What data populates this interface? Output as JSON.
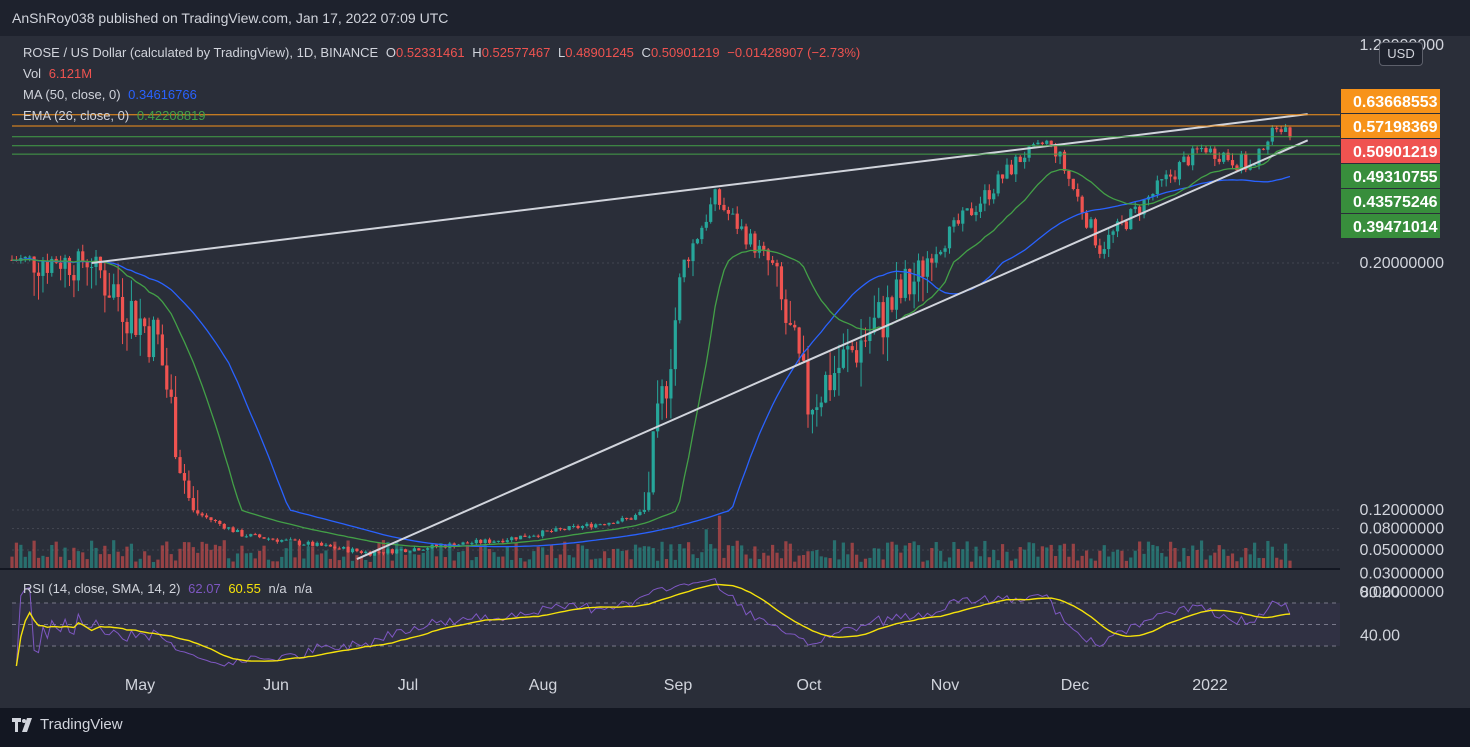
{
  "header": {
    "published": "AnShRoy038 published on TradingView.com, Jan 17, 2022 07:09 UTC"
  },
  "legend": {
    "symbol": "ROSE / US Dollar (calculated by TradingView), 1D, BINANCE",
    "o_label": "O",
    "o": "0.52331461",
    "h_label": "H",
    "h": "0.52577467",
    "l_label": "L",
    "l": "0.48901245",
    "c_label": "C",
    "c": "0.50901219",
    "change": "−0.01428907 (−2.73%)",
    "vol_label": "Vol",
    "vol": "6.121M",
    "ma_label": "MA (50, close, 0)",
    "ma": "0.34616766",
    "ema_label": "EMA (26, close, 0)",
    "ema": "0.42208819",
    "rsi_label": "RSI (14, close, SMA, 14, 2)",
    "rsi": "62.07",
    "rsi_sma": "60.55",
    "na1": "n/a",
    "na2": "n/a"
  },
  "currency": "USD",
  "price_axis": {
    "ticks": [
      "1.20000000",
      "0.20000000",
      "0.12000000",
      "0.08000000",
      "0.05000000",
      "0.03000000",
      "0.02000000"
    ],
    "badges": [
      {
        "label": "0.63668553",
        "color": "#f7931a"
      },
      {
        "label": "0.57198369",
        "color": "#f7931a"
      },
      {
        "label": "0.50901219",
        "color": "#ef5350"
      },
      {
        "label": "0.49310755",
        "color": "#388e3c"
      },
      {
        "label": "0.43575246",
        "color": "#388e3c"
      },
      {
        "label": "0.39471014",
        "color": "#388e3c"
      }
    ]
  },
  "rsi_axis": {
    "ticks": [
      "80.00",
      "40.00"
    ]
  },
  "time_axis": {
    "ticks": [
      "May",
      "Jun",
      "Jul",
      "Aug",
      "Sep",
      "Oct",
      "Nov",
      "Dec",
      "2022"
    ]
  },
  "footer": {
    "brand": "TradingView"
  },
  "colors": {
    "up": "#26a69a",
    "down": "#ef5350",
    "ma": "#2962ff",
    "ema": "#43a047",
    "rsi": "#7e57c2",
    "rsi_sma": "#f5e20b",
    "levels": "#f7931a"
  },
  "chart_data": {
    "type": "candlestick",
    "title": "ROSE / US Dollar (calculated by TradingView), 1D, BINANCE",
    "scale": "log",
    "ylim": [
      0.016,
      1.2
    ],
    "x_range": [
      "2021-04-02",
      "2022-01-16"
    ],
    "key_points": [
      {
        "date": "2021-04-20",
        "close": 0.2
      },
      {
        "date": "2021-05-05",
        "close": 0.17
      },
      {
        "date": "2021-05-24",
        "close": 0.07
      },
      {
        "date": "2021-06-22",
        "close": 0.047
      },
      {
        "date": "2021-07-21",
        "close": 0.062
      },
      {
        "date": "2021-08-20",
        "close": 0.1
      },
      {
        "date": "2021-09-08",
        "close": 0.3
      },
      {
        "date": "2021-09-29",
        "close": 0.15
      },
      {
        "date": "2021-10-24",
        "close": 0.195
      },
      {
        "date": "2021-11-22",
        "close": 0.46
      },
      {
        "date": "2021-12-04",
        "close": 0.22
      },
      {
        "date": "2021-12-27",
        "close": 0.42
      },
      {
        "date": "2022-01-08",
        "close": 0.36
      },
      {
        "date": "2022-01-13",
        "close": 0.58
      },
      {
        "date": "2022-01-16",
        "close": 0.509
      }
    ],
    "horizontal_levels": [
      0.63668553,
      0.57198369,
      0.49310755,
      0.43575246,
      0.39471014
    ],
    "trendlines": [
      {
        "name": "upper wedge",
        "from": [
          "2021-04-20",
          0.2
        ],
        "to": [
          "2022-01-20",
          0.64
        ]
      },
      {
        "name": "lower wedge",
        "from": [
          "2021-06-19",
          0.041
        ],
        "to": [
          "2022-01-20",
          0.47
        ]
      }
    ],
    "series": [
      {
        "name": "MA (50, close, 0)",
        "last": 0.34616766
      },
      {
        "name": "EMA (26, close, 0)",
        "last": 0.42208819
      },
      {
        "name": "Vol",
        "last": "6.121M"
      }
    ],
    "rsi": {
      "name": "RSI (14, close, SMA, 14, 2)",
      "last": 62.07,
      "sma_last": 60.55,
      "bands": [
        70,
        50,
        30
      ],
      "ticks": [
        80,
        40
      ]
    }
  }
}
